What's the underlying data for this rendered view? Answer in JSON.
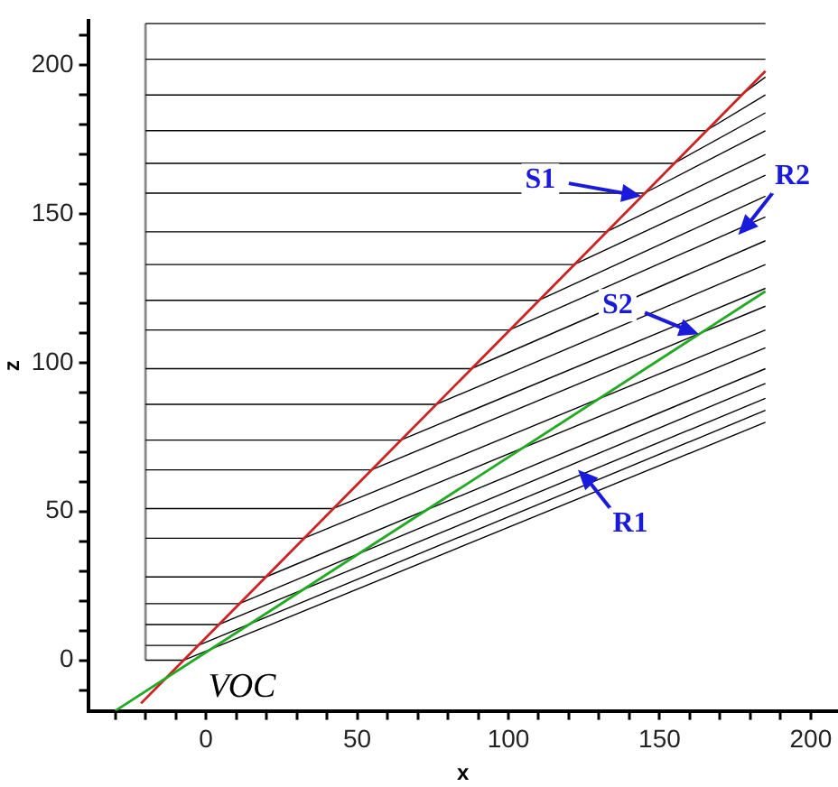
{
  "chart_data": {
    "type": "line",
    "xlabel": "x",
    "ylabel": "z",
    "xlim": [
      -39,
      209
    ],
    "ylim": [
      -17,
      215
    ],
    "xticks": [
      {
        "value": -30,
        "label": null
      },
      {
        "value": -20,
        "label": null
      },
      {
        "value": -10,
        "label": null
      },
      0,
      {
        "value": 10,
        "label": null
      },
      {
        "value": 20,
        "label": null
      },
      {
        "value": 30,
        "label": null
      },
      {
        "value": 40,
        "label": null
      },
      50,
      {
        "value": 60,
        "label": null
      },
      {
        "value": 70,
        "label": null
      },
      {
        "value": 80,
        "label": null
      },
      {
        "value": 90,
        "label": null
      },
      100,
      {
        "value": 110,
        "label": null
      },
      {
        "value": 120,
        "label": null
      },
      {
        "value": 130,
        "label": null
      },
      {
        "value": 140,
        "label": null
      },
      150,
      {
        "value": 160,
        "label": null
      },
      {
        "value": 170,
        "label": null
      },
      {
        "value": 180,
        "label": null
      },
      {
        "value": 190,
        "label": null
      },
      200
    ],
    "yticks": [
      {
        "value": -10,
        "label": null
      },
      0,
      {
        "value": 10,
        "label": null
      },
      {
        "value": 20,
        "label": null
      },
      {
        "value": 30,
        "label": null
      },
      {
        "value": 40,
        "label": null
      },
      50,
      {
        "value": 60,
        "label": null
      },
      {
        "value": 70,
        "label": null
      },
      {
        "value": 80,
        "label": null
      },
      {
        "value": 90,
        "label": null
      },
      100,
      {
        "value": 110,
        "label": null
      },
      {
        "value": 120,
        "label": null
      },
      {
        "value": 130,
        "label": null
      },
      {
        "value": 140,
        "label": null
      },
      150,
      {
        "value": 160,
        "label": null
      },
      {
        "value": 170,
        "label": null
      },
      {
        "value": 180,
        "label": null
      },
      {
        "value": 190,
        "label": null
      },
      200,
      {
        "value": 210,
        "label": null
      }
    ],
    "grid": false,
    "legend": false,
    "marker": "none",
    "line_style": "solid",
    "series": [
      {
        "color": "#888888",
        "x": [
          -20,
          -20
        ],
        "values": [
          0,
          214
        ]
      },
      {
        "color": "#000000",
        "x": [
          -20,
          -7.4,
          185
        ],
        "values": [
          0,
          0,
          80
        ]
      },
      {
        "color": "#000000",
        "x": [
          -20,
          -2.6,
          185
        ],
        "values": [
          5,
          5,
          84
        ]
      },
      {
        "color": "#000000",
        "x": [
          -20,
          4.2,
          185
        ],
        "values": [
          12,
          12,
          88
        ]
      },
      {
        "color": "#000000",
        "x": [
          -20,
          11,
          185
        ],
        "values": [
          19,
          19,
          93
        ]
      },
      {
        "color": "#000000",
        "x": [
          -20,
          19.8,
          185
        ],
        "values": [
          28,
          28,
          98
        ]
      },
      {
        "color": "#000000",
        "x": [
          -20,
          32.4,
          185
        ],
        "values": [
          41,
          41,
          105
        ]
      },
      {
        "color": "#000000",
        "x": [
          -20,
          42.1,
          185
        ],
        "values": [
          51,
          51,
          111
        ]
      },
      {
        "color": "#000000",
        "x": [
          -20,
          54.7,
          185
        ],
        "values": [
          64,
          64,
          119
        ]
      },
      {
        "color": "#000000",
        "x": [
          -20,
          64.4,
          185
        ],
        "values": [
          74,
          74,
          125
        ]
      },
      {
        "color": "#000000",
        "x": [
          -20,
          76.1,
          185
        ],
        "values": [
          86,
          86,
          133
        ]
      },
      {
        "color": "#000000",
        "x": [
          -20,
          87.7,
          185
        ],
        "values": [
          98,
          98,
          141
        ]
      },
      {
        "color": "#000000",
        "x": [
          -20,
          100.3,
          185
        ],
        "values": [
          111,
          111,
          149
        ]
      },
      {
        "color": "#000000",
        "x": [
          -20,
          110.1,
          185
        ],
        "values": [
          121,
          121,
          156
        ]
      },
      {
        "color": "#000000",
        "x": [
          -20,
          121.7,
          185
        ],
        "values": [
          133,
          133,
          163
        ]
      },
      {
        "color": "#000000",
        "x": [
          -20,
          132.4,
          185
        ],
        "values": [
          144,
          144,
          170
        ]
      },
      {
        "color": "#000000",
        "x": [
          -20,
          145,
          185
        ],
        "values": [
          157,
          157,
          178
        ]
      },
      {
        "color": "#000000",
        "x": [
          -20,
          154.7,
          185
        ],
        "values": [
          167,
          167,
          184
        ]
      },
      {
        "color": "#000000",
        "x": [
          -20,
          165.4,
          185
        ],
        "values": [
          178,
          178,
          190
        ]
      },
      {
        "color": "#000000",
        "x": [
          -20,
          177,
          185
        ],
        "values": [
          190,
          190,
          196
        ]
      },
      {
        "color": "#000000",
        "x": [
          -20,
          185
        ],
        "values": [
          202,
          202
        ]
      },
      {
        "color": "#000000",
        "x": [
          -20,
          185
        ],
        "values": [
          214,
          214
        ]
      },
      {
        "color": "#cc2222",
        "x": [
          -21.5,
          185
        ],
        "values": [
          -14.5,
          198
        ]
      },
      {
        "color": "#22aa22",
        "x": [
          -30,
          185
        ],
        "values": [
          -17,
          124
        ]
      }
    ],
    "annotations": [
      {
        "text": "S1",
        "x": 144,
        "y": 156
      },
      {
        "text": "R2",
        "x": 176,
        "y": 143
      },
      {
        "text": "S2",
        "x": 163,
        "y": 109.6
      },
      {
        "text": "R1",
        "x": 123,
        "y": 64
      },
      "VOC"
    ]
  }
}
